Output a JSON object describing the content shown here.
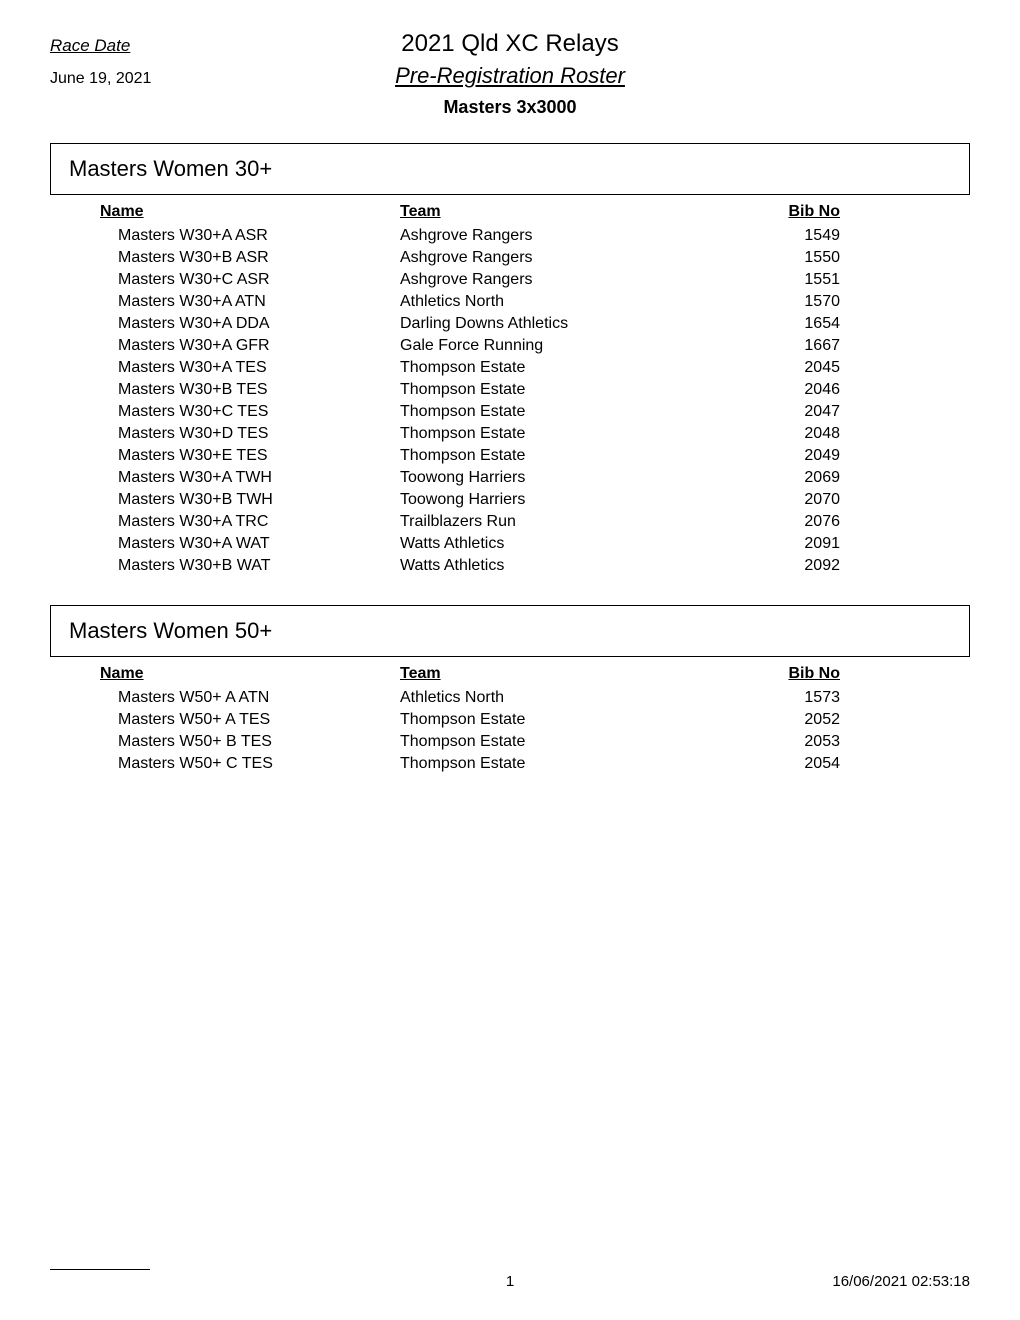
{
  "header": {
    "race_date_label": "Race Date",
    "date": "June 19, 2021",
    "event_title": "2021 Qld XC Relays",
    "roster_title": "Pre-Registration Roster",
    "category": "Masters 3x3000"
  },
  "tables": {
    "columns": [
      "Name",
      "Team",
      "Bib No"
    ]
  },
  "section1": {
    "title": "Masters Women 30+",
    "rows": [
      {
        "name": "Masters W30+A ASR",
        "team": "Ashgrove Rangers",
        "bib": "1549"
      },
      {
        "name": "Masters W30+B ASR",
        "team": "Ashgrove Rangers",
        "bib": "1550"
      },
      {
        "name": "Masters W30+C ASR",
        "team": "Ashgrove Rangers",
        "bib": "1551"
      },
      {
        "name": "Masters W30+A ATN",
        "team": "Athletics North",
        "bib": "1570"
      },
      {
        "name": "Masters W30+A DDA",
        "team": "Darling Downs Athletics",
        "bib": "1654"
      },
      {
        "name": "Masters W30+A GFR",
        "team": "Gale Force Running",
        "bib": "1667"
      },
      {
        "name": "Masters W30+A TES",
        "team": "Thompson Estate",
        "bib": "2045"
      },
      {
        "name": "Masters W30+B TES",
        "team": "Thompson Estate",
        "bib": "2046"
      },
      {
        "name": "Masters W30+C TES",
        "team": "Thompson Estate",
        "bib": "2047"
      },
      {
        "name": "Masters W30+D TES",
        "team": "Thompson Estate",
        "bib": "2048"
      },
      {
        "name": "Masters W30+E TES",
        "team": "Thompson Estate",
        "bib": "2049"
      },
      {
        "name": "Masters W30+A TWH",
        "team": "Toowong Harriers",
        "bib": "2069"
      },
      {
        "name": "Masters W30+B TWH",
        "team": "Toowong Harriers",
        "bib": "2070"
      },
      {
        "name": "Masters W30+A TRC",
        "team": "Trailblazers Run",
        "bib": "2076"
      },
      {
        "name": "Masters W30+A WAT",
        "team": "Watts Athletics",
        "bib": "2091"
      },
      {
        "name": "Masters W30+B WAT",
        "team": "Watts Athletics",
        "bib": "2092"
      }
    ]
  },
  "section2": {
    "title": "Masters Women 50+",
    "rows": [
      {
        "name": "Masters W50+ A ATN",
        "team": "Athletics North",
        "bib": "1573"
      },
      {
        "name": "Masters W50+ A TES",
        "team": "Thompson Estate",
        "bib": "2052"
      },
      {
        "name": "Masters W50+ B TES",
        "team": "Thompson Estate",
        "bib": "2053"
      },
      {
        "name": "Masters W50+ C TES",
        "team": "Thompson Estate",
        "bib": "2054"
      }
    ]
  },
  "footer": {
    "page_number": "1",
    "timestamp": "16/06/2021 02:53:18"
  },
  "styling": {
    "background_color": "#ffffff",
    "text_color": "#000000",
    "border_color": "#000000",
    "font_family": "Arial",
    "body_fontsize": 16,
    "title_fontsize": 24,
    "subtitle_fontsize": 22,
    "section_title_fontsize": 22
  }
}
